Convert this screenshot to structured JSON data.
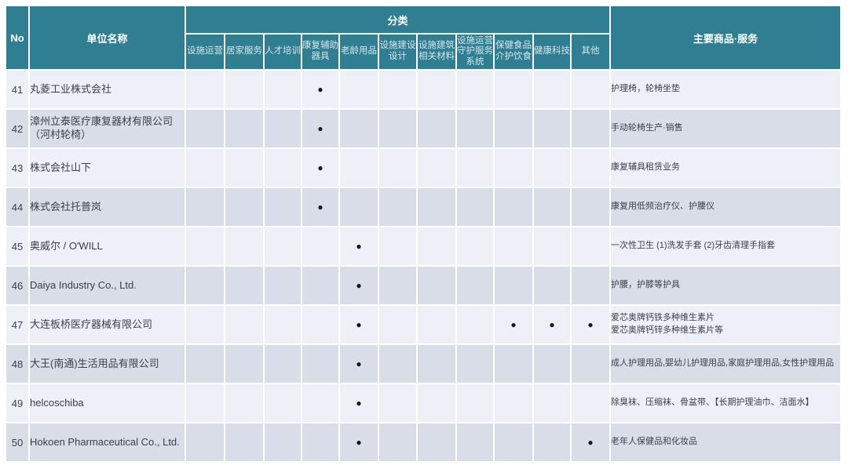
{
  "table": {
    "header": {
      "no": "No",
      "unit_name": "单位名称",
      "category_group": "分类",
      "categories": [
        "设施运营",
        "居家服务",
        "人才培训",
        "康复辅助器具",
        "老龄用品",
        "设施建设设计",
        "设施建筑相关材料",
        "设施运营守护服务系统",
        "保健食品介护饮食",
        "健康科技",
        "其他"
      ],
      "products": "主要商品·服务"
    },
    "rows": [
      {
        "no": "41",
        "name": "丸菱工业株式会社",
        "marks": [
          0,
          0,
          0,
          1,
          0,
          0,
          0,
          0,
          0,
          0,
          0
        ],
        "products": "护理椅，轮椅坐垫"
      },
      {
        "no": "42",
        "name": "漳州立泰医疗康复器材有限公司（河村轮椅）",
        "marks": [
          0,
          0,
          0,
          1,
          0,
          0,
          0,
          0,
          0,
          0,
          0
        ],
        "products": "手动轮椅生产·销售"
      },
      {
        "no": "43",
        "name": "株式会社山下",
        "marks": [
          0,
          0,
          0,
          1,
          0,
          0,
          0,
          0,
          0,
          0,
          0
        ],
        "products": "康复辅具租赁业务"
      },
      {
        "no": "44",
        "name": "株式会社托普岚",
        "marks": [
          0,
          0,
          0,
          1,
          0,
          0,
          0,
          0,
          0,
          0,
          0
        ],
        "products": "康复用低频治疗仪、护腰仪"
      },
      {
        "no": "45",
        "name": "奥威尔 / O'WILL",
        "marks": [
          0,
          0,
          0,
          0,
          1,
          0,
          0,
          0,
          0,
          0,
          0
        ],
        "products": "一次性卫生 (1)洗发手套 (2)牙齿清理手指套"
      },
      {
        "no": "46",
        "name": "Daiya Industry Co., Ltd.",
        "marks": [
          0,
          0,
          0,
          0,
          1,
          0,
          0,
          0,
          0,
          0,
          0
        ],
        "products": "护腰，护膝等护具"
      },
      {
        "no": "47",
        "name": "大连板桥医疗器械有限公司",
        "marks": [
          0,
          0,
          0,
          0,
          1,
          0,
          0,
          0,
          1,
          1,
          1
        ],
        "products": "爱芯奥牌钙铁多种维生素片\n爱芯奥牌钙锌多种维生素片等"
      },
      {
        "no": "48",
        "name": "大王(南通)生活用品有限公司",
        "marks": [
          0,
          0,
          0,
          0,
          1,
          0,
          0,
          0,
          0,
          0,
          0
        ],
        "products": "成人护理用品,婴幼儿护理用品,家庭护理用品,女性护理用品"
      },
      {
        "no": "49",
        "name": "helcoschiba",
        "marks": [
          0,
          0,
          0,
          0,
          1,
          0,
          0,
          0,
          0,
          0,
          0
        ],
        "products": "除臭袜、压缩袜、骨盆带、【长期护理油巾、洁面水】"
      },
      {
        "no": "50",
        "name": "Hokoen Pharmaceutical Co., Ltd.",
        "marks": [
          0,
          0,
          0,
          0,
          1,
          0,
          0,
          0,
          0,
          0,
          1
        ],
        "products": "老年人保健品和化妆品"
      }
    ]
  },
  "dot_glyph": "●",
  "colors": {
    "header_teal": "#2f7e91",
    "row_light": "#eef0f7",
    "row_dark": "#d9dde8",
    "body_text": "#3a3f49",
    "dot": "#15171d"
  }
}
